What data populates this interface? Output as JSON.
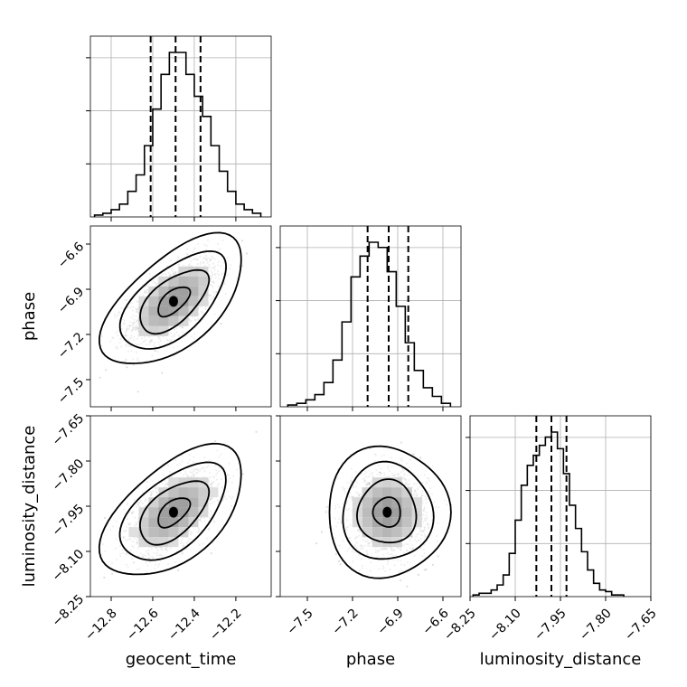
{
  "chart_data": {
    "type": "corner",
    "parameters": [
      "geocent_time",
      "phase",
      "luminosity_distance"
    ],
    "axes": {
      "geocent_time": {
        "range": [
          -12.9,
          -12.03
        ],
        "ticks": [
          -12.8,
          -12.6,
          -12.4,
          -12.2
        ],
        "tick_labels": [
          "−12.8",
          "−12.6",
          "−12.4",
          "−12.2"
        ]
      },
      "phase": {
        "range": [
          -7.68,
          -6.48
        ],
        "ticks": [
          -7.5,
          -7.2,
          -6.9,
          -6.6
        ],
        "tick_labels": [
          "−7.5",
          "−7.2",
          "−6.9",
          "−6.6"
        ]
      },
      "luminosity_distance": {
        "range": [
          -8.25,
          -7.65
        ],
        "ticks": [
          -8.25,
          -8.1,
          -7.95,
          -7.8,
          -7.65
        ],
        "tick_labels": [
          "−8.25",
          "−8.10",
          "−7.95",
          "−7.80",
          "−7.65"
        ]
      }
    },
    "quantiles": {
      "geocent_time": [
        -12.61,
        -12.49,
        -12.37
      ],
      "phase": [
        -7.1,
        -6.96,
        -6.83
      ],
      "luminosity_distance": [
        -8.03,
        -7.98,
        -7.93
      ]
    },
    "histograms": {
      "geocent_time": {
        "edges": [
          -12.88,
          -12.84,
          -12.8,
          -12.76,
          -12.72,
          -12.68,
          -12.64,
          -12.6,
          -12.56,
          -12.52,
          -12.48,
          -12.44,
          -12.4,
          -12.36,
          -12.32,
          -12.28,
          -12.24,
          -12.2,
          -12.16,
          -12.12,
          -12.08
        ],
        "counts": [
          1,
          2,
          4,
          7,
          14,
          23,
          39,
          59,
          78,
          90,
          90,
          78,
          66,
          55,
          39,
          25,
          14,
          7,
          4,
          2
        ]
      },
      "phase": {
        "edges": [
          -7.63,
          -7.57,
          -7.51,
          -7.45,
          -7.39,
          -7.33,
          -7.27,
          -7.21,
          -7.15,
          -7.09,
          -7.03,
          -6.97,
          -6.91,
          -6.85,
          -6.79,
          -6.73,
          -6.67,
          -6.61,
          -6.55
        ],
        "counts": [
          1,
          2,
          4,
          7,
          14,
          27,
          49,
          75,
          87,
          95,
          92,
          78,
          58,
          37,
          21,
          11,
          6,
          2
        ]
      },
      "luminosity_distance": {
        "edges": [
          -8.24,
          -8.22,
          -8.2,
          -8.18,
          -8.16,
          -8.14,
          -8.12,
          -8.1,
          -8.08,
          -8.06,
          -8.04,
          -8.02,
          -8.0,
          -7.98,
          -7.96,
          -7.94,
          -7.92,
          -7.9,
          -7.88,
          -7.86,
          -7.84,
          -7.82,
          -7.8,
          -7.78,
          -7.76,
          -7.74
        ],
        "counts": [
          1,
          2,
          2,
          4,
          7,
          13,
          26,
          46,
          67,
          79,
          85,
          91,
          96,
          99,
          89,
          74,
          55,
          41,
          27,
          16,
          8,
          4,
          3,
          1,
          1
        ]
      }
    },
    "joint": [
      {
        "x": "geocent_time",
        "y": "phase",
        "mean": [
          -12.5,
          -6.98
        ],
        "sd": [
          0.11,
          0.14
        ],
        "rho": 0.6
      },
      {
        "x": "geocent_time",
        "y": "luminosity_distance",
        "mean": [
          -12.5,
          -7.97
        ],
        "sd": [
          0.11,
          0.07
        ],
        "rho": 0.55
      },
      {
        "x": "phase",
        "y": "luminosity_distance",
        "mean": [
          -6.97,
          -7.97
        ],
        "sd": [
          0.13,
          0.07
        ],
        "rho": 0.0
      }
    ]
  }
}
